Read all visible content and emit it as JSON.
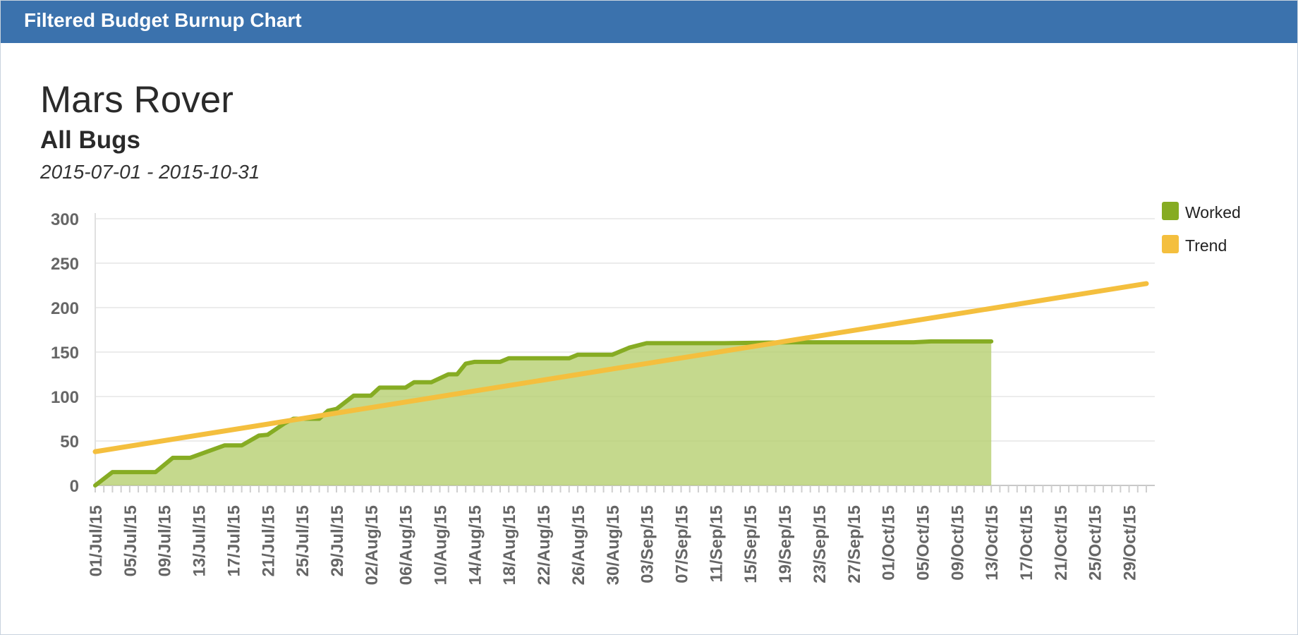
{
  "header": {
    "title": "Filtered Budget Burnup Chart"
  },
  "chart_meta": {
    "project": "Mars Rover",
    "filter": "All Bugs",
    "date_range": "2015-07-01 - 2015-10-31"
  },
  "legend": [
    {
      "label": "Worked",
      "color": "#86ac23"
    },
    {
      "label": "Trend",
      "color": "#f4bf3e"
    }
  ],
  "chart_data": {
    "type": "area",
    "title": "Mars Rover",
    "subtitle": "All Bugs",
    "xlabel": "",
    "ylabel": "",
    "x_start": "2015-07-01",
    "x_end": "2015-10-31",
    "ylim": [
      0,
      300
    ],
    "yticks": [
      0,
      50,
      100,
      150,
      200,
      250,
      300
    ],
    "xtick_labels": [
      "01/Jul/15",
      "05/Jul/15",
      "09/Jul/15",
      "13/Jul/15",
      "17/Jul/15",
      "21/Jul/15",
      "25/Jul/15",
      "29/Jul/15",
      "02/Aug/15",
      "06/Aug/15",
      "10/Aug/15",
      "14/Aug/15",
      "18/Aug/15",
      "22/Aug/15",
      "26/Aug/15",
      "30/Aug/15",
      "03/Sep/15",
      "07/Sep/15",
      "11/Sep/15",
      "15/Sep/15",
      "19/Sep/15",
      "23/Sep/15",
      "27/Sep/15",
      "01/Oct/15",
      "05/Oct/15",
      "09/Oct/15",
      "13/Oct/15",
      "17/Oct/15",
      "21/Oct/15",
      "25/Oct/15",
      "29/Oct/15"
    ],
    "grid": true,
    "legend_position": "top-right",
    "series": [
      {
        "name": "Worked",
        "type": "area",
        "color": "#86ac23",
        "points": [
          [
            "2015-07-01",
            0
          ],
          [
            "2015-07-03",
            15
          ],
          [
            "2015-07-08",
            15
          ],
          [
            "2015-07-10",
            31
          ],
          [
            "2015-07-12",
            31
          ],
          [
            "2015-07-14",
            38
          ],
          [
            "2015-07-16",
            45
          ],
          [
            "2015-07-18",
            45
          ],
          [
            "2015-07-20",
            56
          ],
          [
            "2015-07-21",
            57
          ],
          [
            "2015-07-23",
            70
          ],
          [
            "2015-07-24",
            75
          ],
          [
            "2015-07-27",
            75
          ],
          [
            "2015-07-28",
            84
          ],
          [
            "2015-07-29",
            86
          ],
          [
            "2015-07-31",
            101
          ],
          [
            "2015-08-02",
            101
          ],
          [
            "2015-08-03",
            110
          ],
          [
            "2015-08-06",
            110
          ],
          [
            "2015-08-07",
            116
          ],
          [
            "2015-08-09",
            116
          ],
          [
            "2015-08-11",
            125
          ],
          [
            "2015-08-12",
            125
          ],
          [
            "2015-08-13",
            137
          ],
          [
            "2015-08-14",
            139
          ],
          [
            "2015-08-17",
            139
          ],
          [
            "2015-08-18",
            143
          ],
          [
            "2015-08-25",
            143
          ],
          [
            "2015-08-26",
            147
          ],
          [
            "2015-08-30",
            147
          ],
          [
            "2015-09-01",
            155
          ],
          [
            "2015-09-03",
            160
          ],
          [
            "2015-09-12",
            160
          ],
          [
            "2015-09-20",
            161
          ],
          [
            "2015-10-03",
            161
          ],
          [
            "2015-10-04",
            161
          ],
          [
            "2015-10-06",
            162
          ],
          [
            "2015-10-13",
            162
          ]
        ]
      },
      {
        "name": "Trend",
        "type": "line",
        "color": "#f4bf3e",
        "points": [
          [
            "2015-07-01",
            38
          ],
          [
            "2015-10-31",
            227
          ]
        ]
      }
    ]
  }
}
